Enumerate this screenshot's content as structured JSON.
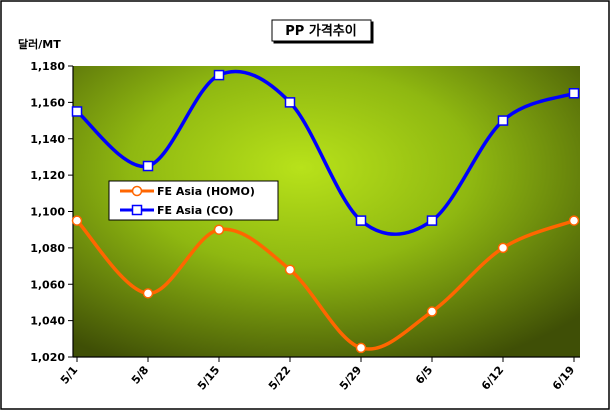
{
  "chart_data": {
    "type": "line",
    "title": "PP 가격추이",
    "ylabel": "달러/MT",
    "xlabel": "",
    "categories": [
      "5/1",
      "5/8",
      "5/15",
      "5/22",
      "5/29",
      "6/5",
      "6/12",
      "6/19"
    ],
    "ylim": [
      1020,
      1180
    ],
    "yticks": [
      1020,
      1040,
      1060,
      1080,
      1100,
      1120,
      1140,
      1160,
      1180
    ],
    "ytick_labels": [
      "1,020",
      "1,040",
      "1,060",
      "1,080",
      "1,100",
      "1,120",
      "1,140",
      "1,160",
      "1,180"
    ],
    "grid": false,
    "legend_position": "middle-left",
    "series": [
      {
        "name": "FE Asia (HOMO)",
        "values": [
          1095,
          1055,
          1090,
          1068,
          1025,
          1045,
          1080,
          1095
        ],
        "color": "#ff6600",
        "marker": "circle"
      },
      {
        "name": "FE Asia (CO)",
        "values": [
          1155,
          1125,
          1175,
          1160,
          1095,
          1095,
          1150,
          1165
        ],
        "color": "#0000ff",
        "marker": "square"
      }
    ]
  }
}
